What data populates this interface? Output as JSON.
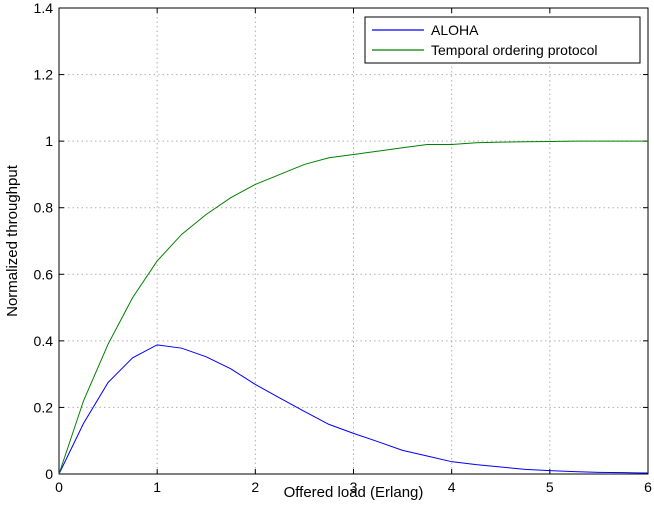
{
  "chart_data": {
    "type": "line",
    "title": "",
    "xlabel": "Offered load (Erlang)",
    "ylabel": "Normalized throughput",
    "xlim": [
      0,
      6
    ],
    "ylim": [
      0,
      1.4
    ],
    "xticks": [
      0,
      1,
      2,
      3,
      4,
      5,
      6
    ],
    "yticks": [
      0,
      0.2,
      0.4,
      0.6,
      0.8,
      1,
      1.2,
      1.4
    ],
    "xtick_labels": [
      "0",
      "1",
      "2",
      "3",
      "4",
      "5",
      "6"
    ],
    "ytick_labels": [
      "0",
      "0.2",
      "0.4",
      "0.6",
      "0.8",
      "1",
      "1.2",
      "1.4"
    ],
    "grid": true,
    "legend_position": "top-right",
    "series": [
      {
        "name": "ALOHA",
        "color": "#0000ff",
        "x": [
          0,
          0.25,
          0.5,
          0.75,
          1,
          1.25,
          1.5,
          1.75,
          2,
          2.25,
          2.5,
          2.75,
          3,
          3.25,
          3.5,
          3.75,
          4,
          4.25,
          4.5,
          4.75,
          5,
          5.25,
          5.5,
          5.75,
          6
        ],
        "y": [
          0,
          0.152,
          0.275,
          0.349,
          0.388,
          0.378,
          0.352,
          0.316,
          0.269,
          0.228,
          0.188,
          0.149,
          0.122,
          0.097,
          0.071,
          0.054,
          0.037,
          0.028,
          0.021,
          0.014,
          0.01,
          0.007,
          0.005,
          0.004,
          0.003
        ]
      },
      {
        "name": "Temporal ordering protocol",
        "color": "#008000",
        "x": [
          0,
          0.25,
          0.5,
          0.75,
          1,
          1.25,
          1.5,
          1.75,
          2,
          2.25,
          2.5,
          2.75,
          3,
          3.25,
          3.5,
          3.75,
          4,
          4.25,
          4.5,
          4.75,
          5,
          5.25,
          5.5,
          5.75,
          6
        ],
        "y": [
          0,
          0.22,
          0.39,
          0.53,
          0.64,
          0.72,
          0.78,
          0.83,
          0.87,
          0.9,
          0.93,
          0.95,
          0.96,
          0.97,
          0.98,
          0.99,
          0.99,
          0.995,
          0.997,
          0.998,
          0.999,
          1.0,
          1.0,
          1.0,
          1.0
        ]
      }
    ]
  }
}
